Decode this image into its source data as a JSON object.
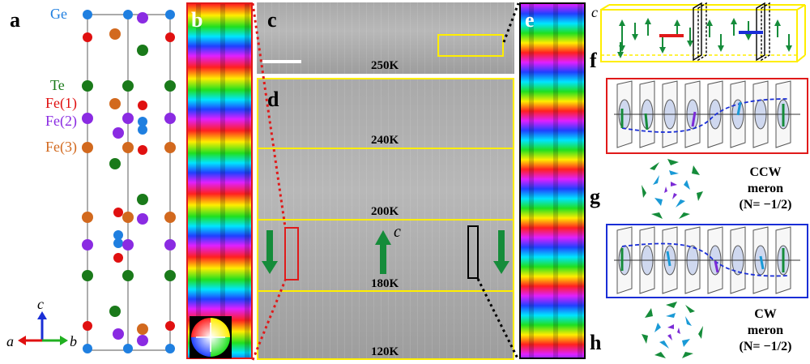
{
  "panel_labels": {
    "a": "a",
    "b": "b",
    "c": "c",
    "d": "d",
    "e": "e",
    "f": "f",
    "g": "g",
    "h": "h"
  },
  "legend": {
    "ge": "Ge",
    "te": "Te",
    "fe1": "Fe(1)",
    "fe2": "Fe(2)",
    "fe3": "Fe(3)",
    "colors": {
      "ge": "#1f7fe0",
      "te": "#1a7a1a",
      "fe1": "#e01010",
      "fe2": "#8a2be2",
      "fe3": "#d2691e"
    }
  },
  "axes": {
    "c": "c",
    "a": "a",
    "b": "b",
    "c_panel_f": "c",
    "c_panel_d": "c"
  },
  "temperatures": {
    "t250": "250K",
    "t240": "240K",
    "t200": "200K",
    "t180": "180K",
    "t120": "120K"
  },
  "meron_labels": {
    "ccw_line1": "CCW",
    "ccw_line2": "meron",
    "ccw_line3": "(N= −1/2)",
    "cw_line1": "CW",
    "cw_line2": "meron",
    "cw_line3": "(N= −1/2)"
  },
  "accent_colors": {
    "frame_yellow": "#ffee00",
    "frame_red": "#e01a1a",
    "frame_blue": "#1a2ed6",
    "arrow_green": "#158c3a"
  }
}
